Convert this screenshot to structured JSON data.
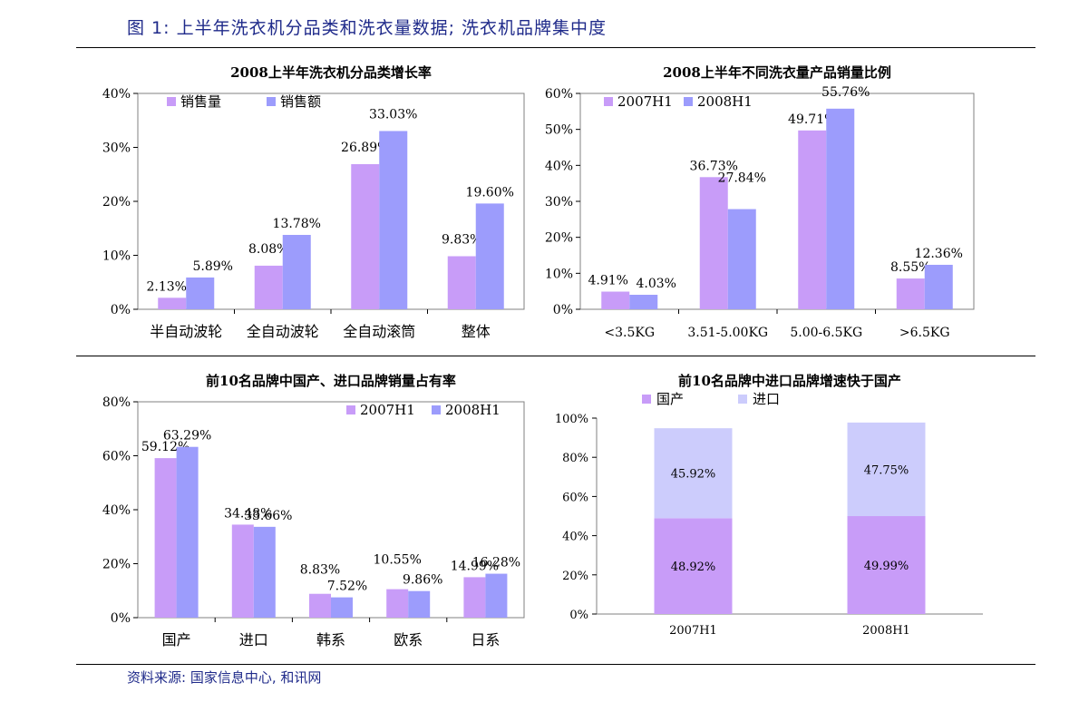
{
  "header": {
    "figure_title": "图 1: 上半年洗衣机分品类和洗衣量数据; 洗衣机品牌集中度"
  },
  "footer": {
    "source": "资料来源: 国家信息中心, 和讯网"
  },
  "colors": {
    "series_a": "#c89cf8",
    "series_b": "#9c9cfc",
    "stack_bottom": "#c89cf8",
    "stack_top": "#ccccfc",
    "title_blue": "#1f2a8a"
  },
  "chart_data": [
    {
      "type": "bar",
      "title": "2008上半年洗衣机分品类增长率",
      "categories": [
        "半自动波轮",
        "全自动波轮",
        "全自动滚筒",
        "整体"
      ],
      "series": [
        {
          "name": "销售量",
          "values": [
            2.13,
            8.08,
            26.89,
            9.83
          ],
          "labels": [
            "2.13%",
            "8.08%",
            "26.89%",
            "9.83%"
          ]
        },
        {
          "name": "销售额",
          "values": [
            5.89,
            13.78,
            33.03,
            19.6
          ],
          "labels": [
            "5.89%",
            "13.78%",
            "33.03%",
            "19.60%"
          ]
        }
      ],
      "ylim": [
        0,
        40
      ],
      "yticks": [
        "0%",
        "10%",
        "20%",
        "30%",
        "40%"
      ],
      "legend": "top-left",
      "grid": false
    },
    {
      "type": "bar",
      "title": "2008上半年不同洗衣量产品销量比例",
      "categories": [
        "<3.5KG",
        "3.51-5.00KG",
        "5.00-6.5KG",
        ">6.5KG"
      ],
      "series": [
        {
          "name": "2007H1",
          "values": [
            4.91,
            36.73,
            49.71,
            8.55
          ],
          "labels": [
            "4.91%",
            "36.73%",
            "49.71%",
            "8.55%"
          ]
        },
        {
          "name": "2008H1",
          "values": [
            4.03,
            27.84,
            55.76,
            12.36
          ],
          "labels": [
            "4.03%",
            "27.84%",
            "55.76%",
            "12.36%"
          ]
        }
      ],
      "ylim": [
        0,
        60
      ],
      "yticks": [
        "0%",
        "10%",
        "20%",
        "30%",
        "40%",
        "50%",
        "60%"
      ],
      "legend": "top-left",
      "grid": false
    },
    {
      "type": "bar",
      "title": "前10名品牌中国产、进口品牌销量占有率",
      "categories": [
        "国产",
        "进口",
        "韩系",
        "欧系",
        "日系"
      ],
      "series": [
        {
          "name": "2007H1",
          "values": [
            59.12,
            34.48,
            8.83,
            10.55,
            14.99
          ],
          "labels": [
            "59.12%",
            "34.48%",
            "8.83%",
            "10.55%",
            "14.99%"
          ]
        },
        {
          "name": "2008H1",
          "values": [
            63.29,
            33.66,
            7.52,
            9.86,
            16.28
          ],
          "labels": [
            "63.29%",
            "33.66%",
            "7.52%",
            "9.86%",
            "16.28%"
          ]
        }
      ],
      "ylim": [
        0,
        80
      ],
      "yticks": [
        "0%",
        "20%",
        "40%",
        "60%",
        "80%"
      ],
      "legend": "top-right",
      "grid": false
    },
    {
      "type": "bar",
      "stacked": true,
      "title": "前10名品牌中进口品牌增速快于国产",
      "categories": [
        "2007H1",
        "2008H1"
      ],
      "series": [
        {
          "name": "国产",
          "values": [
            48.92,
            49.99
          ],
          "labels": [
            "48.92%",
            "49.99%"
          ]
        },
        {
          "name": "进口",
          "values": [
            45.92,
            47.75
          ],
          "labels": [
            "45.92%",
            "47.75%"
          ]
        }
      ],
      "ylim": [
        0,
        100
      ],
      "yticks": [
        "0%",
        "20%",
        "40%",
        "60%",
        "80%",
        "100%"
      ],
      "legend": "top-left",
      "grid": false
    }
  ]
}
